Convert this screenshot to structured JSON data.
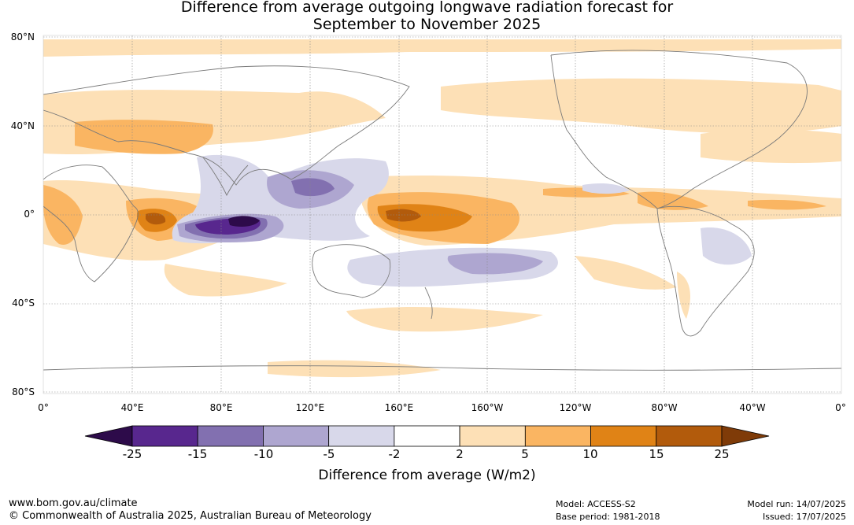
{
  "title": {
    "line1": "Difference from average outgoing longwave radiation forecast for",
    "line2": "September to November 2025"
  },
  "map": {
    "lat_labels": [
      "80°N",
      "40°N",
      "0°",
      "40°S",
      "80°S"
    ],
    "lon_labels": [
      "0°",
      "40°E",
      "80°E",
      "120°E",
      "160°E",
      "160°W",
      "120°W",
      "80°W",
      "40°W",
      "0°"
    ]
  },
  "colorbar": {
    "ticks": [
      "-25",
      "-15",
      "-10",
      "-5",
      "-2",
      "2",
      "5",
      "10",
      "15",
      "25"
    ],
    "colors": [
      "#2d0b4a",
      "#58278e",
      "#8270b0",
      "#aea6d0",
      "#d8d8ea",
      "#ffffff",
      "#fde0b6",
      "#fab562",
      "#e08316",
      "#b25b0c",
      "#7f3b08"
    ],
    "label": "Difference from average (W/m2)"
  },
  "footer": {
    "website": "www.bom.gov.au/climate",
    "copyright": "© Commonwealth of Australia 2025, Australian Bureau of Meteorology",
    "model": "Model: ACCESS-S2",
    "base_period": "Base period: 1981-2018",
    "model_run": "Model run: 14/07/2025",
    "issued": "Issued: 17/07/2025"
  }
}
